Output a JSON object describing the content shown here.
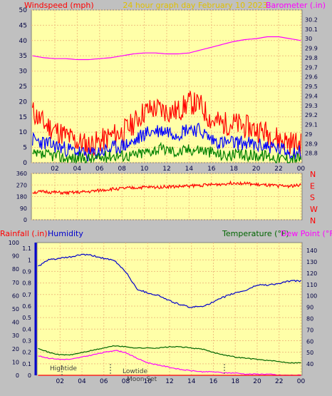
{
  "header": {
    "left_label": "Windspeed (mph)",
    "center_label": "24 hour graph day   February 10 2023",
    "right_label": "Barometer (.in)"
  },
  "colors": {
    "panel_bg": "#ffffa8",
    "frame": "#c0c0c0",
    "grid": "#f0c080",
    "wind_gust": "#ff0000",
    "wind_avg": "#0000ff",
    "wind_low": "#008000",
    "barometer": "#ff00ff",
    "direction": "#ff0000",
    "humidity": "#0000cc",
    "temperature": "#006400",
    "dewpoint": "#ff00ff",
    "rainfall": "#ff0000"
  },
  "chart_data": [
    {
      "type": "line",
      "name": "wind-barometer",
      "x_ticks": [
        "02",
        "04",
        "06",
        "08",
        "10",
        "12",
        "14",
        "16",
        "18",
        "20",
        "22",
        "00"
      ],
      "left_axis": {
        "label": "Windspeed (mph)",
        "range": [
          0,
          50
        ],
        "ticks": [
          "0",
          "5",
          "10",
          "15",
          "20",
          "25",
          "30",
          "35",
          "40",
          "45",
          "50"
        ]
      },
      "right_axis": {
        "label": "Barometer (.in)",
        "range": [
          28.7,
          30.3
        ],
        "ticks": [
          "28.8",
          "28.9",
          "29",
          "29.1",
          "29.2",
          "29.3",
          "29.4",
          "29.5",
          "29.6",
          "29.7",
          "29.8",
          "29.9",
          "30",
          "30.1",
          "30.2"
        ]
      },
      "series": [
        {
          "name": "Windspeed (mph)",
          "axis": "left",
          "color": "#ff0000",
          "x": [
            0,
            1,
            2,
            3,
            4,
            5,
            6,
            7,
            8,
            9,
            10,
            11,
            12,
            13,
            14,
            15,
            16,
            17,
            18,
            19,
            20,
            21,
            22,
            23,
            24
          ],
          "y": [
            16,
            12,
            10,
            8,
            6,
            5,
            6,
            8,
            9,
            12,
            16,
            17,
            16,
            16,
            19,
            18,
            13,
            12,
            12,
            11,
            10,
            9,
            7,
            6,
            5
          ]
        },
        {
          "name": "wind average",
          "axis": "left",
          "color": "#0000ff",
          "x": [
            0,
            1,
            2,
            3,
            4,
            5,
            6,
            7,
            8,
            9,
            10,
            11,
            12,
            13,
            14,
            15,
            16,
            17,
            18,
            19,
            20,
            21,
            22,
            23,
            24
          ],
          "y": [
            7,
            6,
            5,
            4,
            3,
            2,
            3,
            4,
            5,
            6,
            9,
            10,
            10,
            9,
            11,
            10,
            7,
            6,
            6,
            6,
            5,
            5,
            4,
            3,
            3
          ]
        },
        {
          "name": "wind low",
          "axis": "left",
          "color": "#008000",
          "x": [
            0,
            1,
            2,
            3,
            4,
            5,
            6,
            7,
            8,
            9,
            10,
            11,
            12,
            13,
            14,
            15,
            16,
            17,
            18,
            19,
            20,
            21,
            22,
            23,
            24
          ],
          "y": [
            2,
            2,
            2,
            1,
            1,
            1,
            1,
            2,
            2,
            2,
            3,
            4,
            4,
            3,
            4,
            4,
            3,
            2,
            2,
            2,
            2,
            2,
            1,
            1,
            1
          ]
        },
        {
          "name": "Barometer (.in)",
          "axis": "right",
          "color": "#ff00ff",
          "x": [
            0,
            1,
            2,
            3,
            4,
            5,
            6,
            7,
            8,
            9,
            10,
            11,
            12,
            13,
            14,
            15,
            16,
            17,
            18,
            19,
            20,
            21,
            22,
            23,
            24
          ],
          "y": [
            29.82,
            29.8,
            29.79,
            29.79,
            29.78,
            29.78,
            29.79,
            29.8,
            29.82,
            29.84,
            29.85,
            29.85,
            29.84,
            29.84,
            29.85,
            29.88,
            29.91,
            29.94,
            29.97,
            29.99,
            30.0,
            30.02,
            30.02,
            30.0,
            29.98
          ]
        }
      ]
    },
    {
      "type": "line",
      "name": "wind-direction",
      "x_ticks": [
        "02",
        "04",
        "06",
        "08",
        "10",
        "12",
        "14",
        "16",
        "18",
        "20",
        "22",
        "00"
      ],
      "y_axis": {
        "range": [
          0,
          360
        ],
        "ticks": [
          "0",
          "90",
          "180",
          "270",
          "360"
        ]
      },
      "compass_labels": [
        "N",
        "W",
        "S",
        "E",
        "N"
      ],
      "series": [
        {
          "name": "direction",
          "color": "#ff0000",
          "x": [
            0,
            1,
            2,
            3,
            4,
            5,
            6,
            7,
            8,
            9,
            10,
            11,
            12,
            13,
            14,
            15,
            16,
            17,
            18,
            19,
            20,
            21,
            22,
            23,
            24
          ],
          "y": [
            210,
            215,
            210,
            205,
            210,
            215,
            225,
            235,
            240,
            245,
            250,
            250,
            255,
            255,
            260,
            265,
            270,
            275,
            285,
            280,
            270,
            265,
            260,
            260,
            265
          ]
        }
      ]
    },
    {
      "type": "line",
      "name": "rain-humidity-temperature",
      "x_ticks": [
        "02",
        "04",
        "06",
        "08",
        "10",
        "12",
        "14",
        "16",
        "18",
        "20",
        "22",
        "00"
      ],
      "left_axis": {
        "label": "Rainfall (.in)",
        "range": [
          0,
          1.15
        ],
        "ticks": [
          "0",
          "0.1",
          "0.2",
          "0.3",
          "0.4",
          "0.5",
          "0.6",
          "0.7",
          "0.8",
          "0.9",
          "1",
          "1.1"
        ]
      },
      "humidity_axis": {
        "label": "Humidity",
        "range": [
          0,
          100
        ],
        "ticks": [
          "0",
          "10",
          "20",
          "30",
          "40",
          "50",
          "60",
          "70",
          "80",
          "90",
          "100"
        ]
      },
      "right_axis": {
        "label": "Temperature (°F)",
        "label2": "Dew Point (°F)",
        "range": [
          30,
          147
        ],
        "ticks": [
          "40",
          "50",
          "60",
          "70",
          "80",
          "90",
          "100",
          "110",
          "120",
          "130",
          "140"
        ]
      },
      "annotations": [
        "Hightide",
        "Lowtide",
        "Moon Set"
      ],
      "series": [
        {
          "name": "Humidity",
          "axis": "humidity",
          "color": "#0000cc",
          "x": [
            0,
            1,
            2,
            3,
            4,
            5,
            6,
            7,
            8,
            9,
            10,
            11,
            12,
            13,
            14,
            15,
            16,
            17,
            18,
            19,
            20,
            21,
            22,
            23,
            24
          ],
          "y": [
            82,
            87,
            88,
            89,
            91,
            90,
            88,
            86,
            78,
            65,
            62,
            60,
            56,
            53,
            51,
            52,
            55,
            59,
            62,
            64,
            68,
            68,
            69,
            71,
            71
          ]
        },
        {
          "name": "Temperature (°F)",
          "axis": "right",
          "color": "#006400",
          "x": [
            0,
            1,
            2,
            3,
            4,
            5,
            6,
            7,
            8,
            9,
            10,
            11,
            12,
            13,
            14,
            15,
            16,
            17,
            18,
            19,
            20,
            21,
            22,
            23,
            24
          ],
          "y": [
            54,
            50,
            48,
            48,
            50,
            52,
            54,
            56,
            55,
            54,
            54,
            54,
            55,
            55,
            54,
            53,
            50,
            48,
            46,
            45,
            44,
            43,
            42,
            41,
            41
          ]
        },
        {
          "name": "Dew Point (°F)",
          "axis": "right",
          "color": "#ff00ff",
          "x": [
            0,
            1,
            2,
            3,
            4,
            5,
            6,
            7,
            8,
            9,
            10,
            11,
            12,
            13,
            14,
            15,
            16,
            17,
            18,
            19,
            20,
            21,
            22,
            23,
            24
          ],
          "y": [
            47,
            45,
            44,
            44,
            46,
            48,
            50,
            52,
            50,
            45,
            41,
            39,
            37,
            35,
            34,
            33,
            33,
            32,
            32,
            31,
            31,
            31,
            30,
            30,
            30
          ]
        },
        {
          "name": "Rainfall (.in)",
          "axis": "left",
          "color": "#ff0000",
          "x": [
            0,
            24
          ],
          "y": [
            0,
            0
          ]
        }
      ]
    }
  ]
}
